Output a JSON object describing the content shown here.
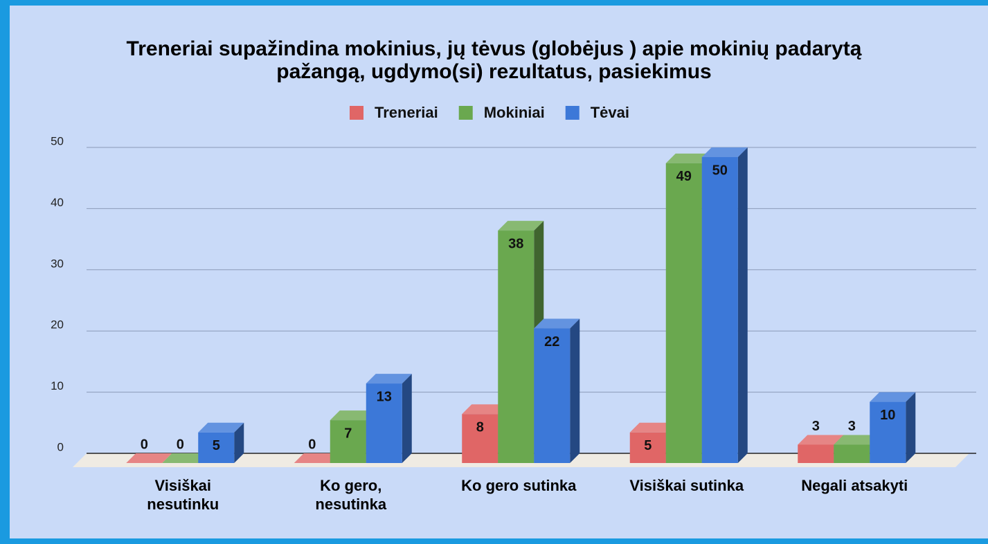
{
  "chart_data": {
    "type": "bar3d",
    "title": "Treneriai supažindina mokinius, jų tėvus (globėjus ) apie mokinių padarytą\npažangą, ugdymo(si) rezultatus, pasiekimus",
    "categories": [
      "Visiškai\nnesutinku",
      "Ko gero,\nnesutinka",
      "Ko gero sutinka",
      "Visiškai sutinka",
      "Negali atsakyti"
    ],
    "series": [
      {
        "name": "Treneriai",
        "color": "#e06666",
        "values": [
          0,
          0,
          8,
          5,
          3
        ]
      },
      {
        "name": "Mokiniai",
        "color": "#6aa84f",
        "values": [
          0,
          7,
          38,
          49,
          3
        ]
      },
      {
        "name": "Tėvai",
        "color": "#3c78d8",
        "values": [
          5,
          13,
          22,
          50,
          10
        ]
      }
    ],
    "ylim": [
      0,
      50
    ],
    "yticks": [
      0,
      10,
      20,
      30,
      40,
      50
    ],
    "grid": true,
    "legend": "top"
  }
}
